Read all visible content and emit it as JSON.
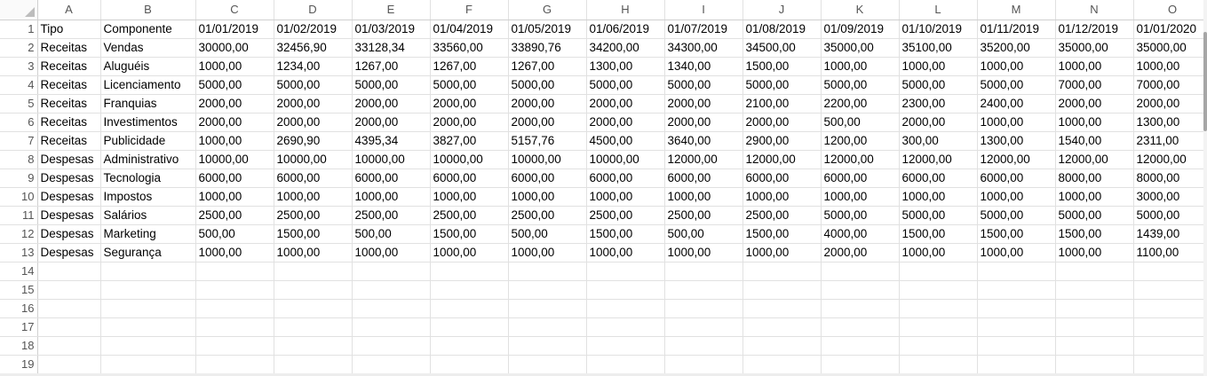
{
  "columns": [
    "A",
    "B",
    "C",
    "D",
    "E",
    "F",
    "G",
    "H",
    "I",
    "J",
    "K",
    "L",
    "M",
    "N",
    "O"
  ],
  "rows": [
    {
      "num": "1",
      "cells": [
        "Tipo",
        "Componente",
        "01/01/2019",
        "01/02/2019",
        "01/03/2019",
        "01/04/2019",
        "01/05/2019",
        "01/06/2019",
        "01/07/2019",
        "01/08/2019",
        "01/09/2019",
        "01/10/2019",
        "01/11/2019",
        "01/12/2019",
        "01/01/2020"
      ]
    },
    {
      "num": "2",
      "cells": [
        "Receitas",
        "Vendas",
        "30000,00",
        "32456,90",
        "33128,34",
        "33560,00",
        "33890,76",
        "34200,00",
        "34300,00",
        "34500,00",
        "35000,00",
        "35100,00",
        "35200,00",
        "35000,00",
        "35000,00"
      ]
    },
    {
      "num": "3",
      "cells": [
        "Receitas",
        "Aluguéis",
        "1000,00",
        "1234,00",
        "1267,00",
        "1267,00",
        "1267,00",
        "1300,00",
        "1340,00",
        "1500,00",
        "1000,00",
        "1000,00",
        "1000,00",
        "1000,00",
        "1000,00"
      ]
    },
    {
      "num": "4",
      "cells": [
        "Receitas",
        "Licenciamento",
        "5000,00",
        "5000,00",
        "5000,00",
        "5000,00",
        "5000,00",
        "5000,00",
        "5000,00",
        "5000,00",
        "5000,00",
        "5000,00",
        "5000,00",
        "7000,00",
        "7000,00"
      ]
    },
    {
      "num": "5",
      "cells": [
        "Receitas",
        "Franquias",
        "2000,00",
        "2000,00",
        "2000,00",
        "2000,00",
        "2000,00",
        "2000,00",
        "2000,00",
        "2100,00",
        "2200,00",
        "2300,00",
        "2400,00",
        "2000,00",
        "2000,00"
      ]
    },
    {
      "num": "6",
      "cells": [
        "Receitas",
        "Investimentos",
        "2000,00",
        "2000,00",
        "2000,00",
        "2000,00",
        "2000,00",
        "2000,00",
        "2000,00",
        "2000,00",
        "500,00",
        "2000,00",
        "1000,00",
        "1000,00",
        "1300,00"
      ]
    },
    {
      "num": "7",
      "cells": [
        "Receitas",
        "Publicidade",
        "1000,00",
        "2690,90",
        "4395,34",
        "3827,00",
        "5157,76",
        "4500,00",
        "3640,00",
        "2900,00",
        "1200,00",
        "300,00",
        "1300,00",
        "1540,00",
        "2311,00"
      ]
    },
    {
      "num": "8",
      "cells": [
        "Despesas",
        "Administrativo",
        "10000,00",
        "10000,00",
        "10000,00",
        "10000,00",
        "10000,00",
        "10000,00",
        "12000,00",
        "12000,00",
        "12000,00",
        "12000,00",
        "12000,00",
        "12000,00",
        "12000,00"
      ]
    },
    {
      "num": "9",
      "cells": [
        "Despesas",
        "Tecnologia",
        "6000,00",
        "6000,00",
        "6000,00",
        "6000,00",
        "6000,00",
        "6000,00",
        "6000,00",
        "6000,00",
        "6000,00",
        "6000,00",
        "6000,00",
        "8000,00",
        "8000,00"
      ]
    },
    {
      "num": "10",
      "cells": [
        "Despesas",
        "Impostos",
        "1000,00",
        "1000,00",
        "1000,00",
        "1000,00",
        "1000,00",
        "1000,00",
        "1000,00",
        "1000,00",
        "1000,00",
        "1000,00",
        "1000,00",
        "1000,00",
        "3000,00"
      ]
    },
    {
      "num": "11",
      "cells": [
        "Despesas",
        "Salários",
        "2500,00",
        "2500,00",
        "2500,00",
        "2500,00",
        "2500,00",
        "2500,00",
        "2500,00",
        "2500,00",
        "5000,00",
        "5000,00",
        "5000,00",
        "5000,00",
        "5000,00"
      ]
    },
    {
      "num": "12",
      "cells": [
        "Despesas",
        "Marketing",
        "500,00",
        "1500,00",
        "500,00",
        "1500,00",
        "500,00",
        "1500,00",
        "500,00",
        "1500,00",
        "4000,00",
        "1500,00",
        "1500,00",
        "1500,00",
        "1439,00"
      ]
    },
    {
      "num": "13",
      "cells": [
        "Despesas",
        "Segurança",
        "1000,00",
        "1000,00",
        "1000,00",
        "1000,00",
        "1000,00",
        "1000,00",
        "1000,00",
        "1000,00",
        "2000,00",
        "1000,00",
        "1000,00",
        "1000,00",
        "1100,00"
      ]
    },
    {
      "num": "14",
      "cells": [
        "",
        "",
        "",
        "",
        "",
        "",
        "",
        "",
        "",
        "",
        "",
        "",
        "",
        "",
        ""
      ]
    },
    {
      "num": "15",
      "cells": [
        "",
        "",
        "",
        "",
        "",
        "",
        "",
        "",
        "",
        "",
        "",
        "",
        "",
        "",
        ""
      ]
    },
    {
      "num": "16",
      "cells": [
        "",
        "",
        "",
        "",
        "",
        "",
        "",
        "",
        "",
        "",
        "",
        "",
        "",
        "",
        ""
      ]
    },
    {
      "num": "17",
      "cells": [
        "",
        "",
        "",
        "",
        "",
        "",
        "",
        "",
        "",
        "",
        "",
        "",
        "",
        "",
        ""
      ]
    },
    {
      "num": "18",
      "cells": [
        "",
        "",
        "",
        "",
        "",
        "",
        "",
        "",
        "",
        "",
        "",
        "",
        "",
        "",
        ""
      ]
    },
    {
      "num": "19",
      "cells": [
        "",
        "",
        "",
        "",
        "",
        "",
        "",
        "",
        "",
        "",
        "",
        "",
        "",
        "",
        ""
      ]
    }
  ]
}
